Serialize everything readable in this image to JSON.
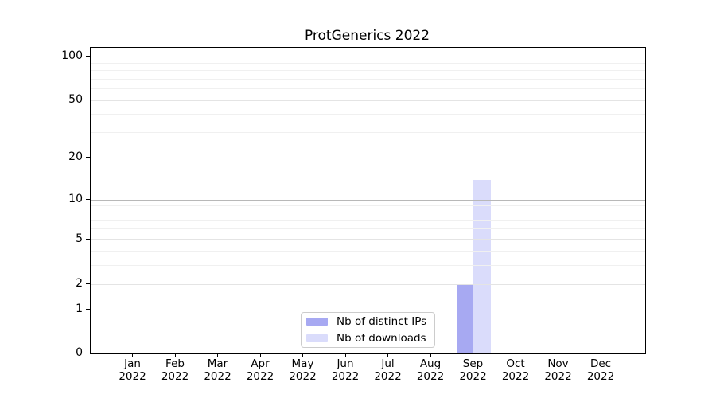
{
  "title": "ProtGenerics 2022",
  "chart_data": {
    "type": "bar",
    "title": "ProtGenerics 2022",
    "categories": [
      "Jan",
      "Feb",
      "Mar",
      "Apr",
      "May",
      "Jun",
      "Jul",
      "Aug",
      "Sep",
      "Oct",
      "Nov",
      "Dec"
    ],
    "x_tick_second_line": "2022",
    "series": [
      {
        "name": "Nb of distinct IPs",
        "color": "#a7a9f2",
        "values": [
          0,
          0,
          0,
          0,
          0,
          0,
          0,
          0,
          2,
          0,
          0,
          0
        ]
      },
      {
        "name": "Nb of downloads",
        "color": "#dadcfb",
        "values": [
          0,
          0,
          0,
          0,
          0,
          0,
          0,
          0,
          14,
          0,
          0,
          0
        ]
      }
    ],
    "xlabel": "",
    "ylabel": "",
    "y_axis": {
      "scale": "log1p",
      "ticks": [
        0,
        1,
        2,
        5,
        10,
        20,
        50,
        100
      ],
      "minor_ticks": [
        3,
        4,
        6,
        7,
        8,
        9,
        30,
        40,
        60,
        70,
        80,
        90
      ],
      "ylim": [
        0,
        115
      ]
    },
    "grid": "on",
    "legend_position": "lower center"
  },
  "colors": {
    "background": "#ffffff",
    "axis": "#000000",
    "text": "#000000",
    "grid_decade": "#b8b8b8",
    "grid_major": "#e4e4e4",
    "grid_minor": "#f0f0f0",
    "legend_border": "#cccccc"
  }
}
